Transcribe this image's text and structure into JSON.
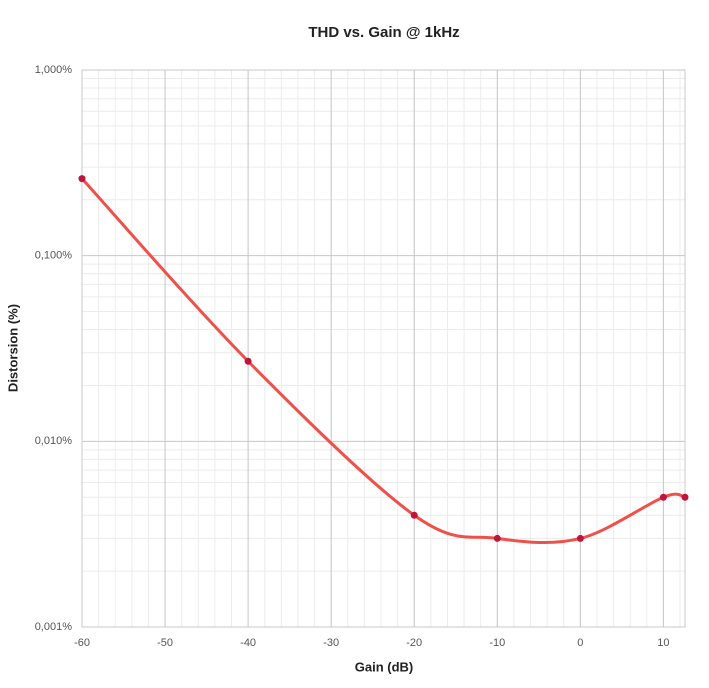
{
  "chart_data": {
    "type": "line",
    "title": "THD vs. Gain @ 1kHz",
    "x_label": "Gain (dB)",
    "y_label": "Distorsion (%)",
    "x": [
      -60,
      -40,
      -20,
      -10,
      0,
      10,
      12.6
    ],
    "series": [
      {
        "name": "THD",
        "color": "#f0504a",
        "marker_color": "#c0143c",
        "values": [
          0.26,
          0.027,
          0.004,
          0.003,
          0.003,
          0.005,
          0.005
        ]
      }
    ],
    "xlim": [
      -60,
      12.6
    ],
    "xticks": [
      -60,
      -50,
      -40,
      -30,
      -20,
      -10,
      0,
      10
    ],
    "ylim": [
      0.001,
      1
    ],
    "y_scale": "log",
    "smooth": true,
    "grid": true,
    "yticks": [
      {
        "value": 0.001,
        "label": "0,001%"
      },
      {
        "value": 0.01,
        "label": "0,010%"
      },
      {
        "value": 0.1,
        "label": "0,100%"
      },
      {
        "value": 1,
        "label": "1,000%"
      }
    ]
  }
}
